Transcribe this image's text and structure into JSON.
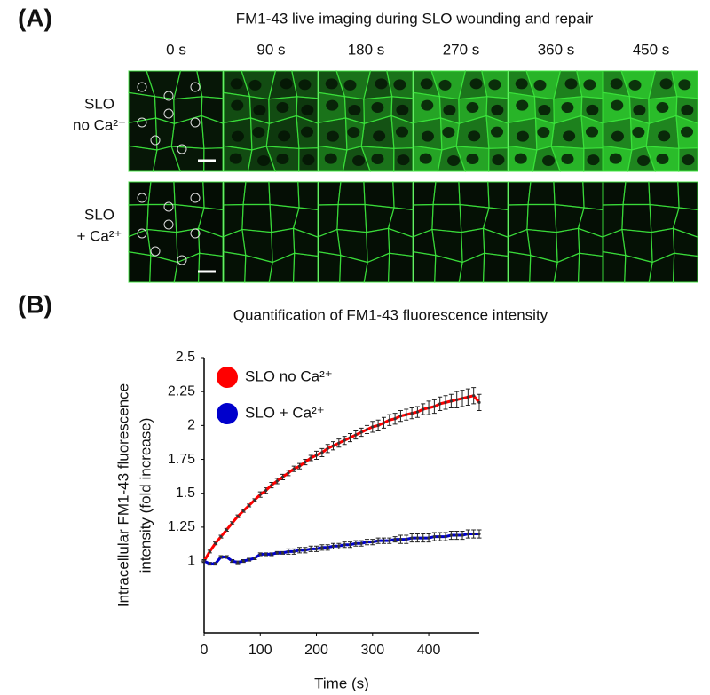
{
  "panel_a": {
    "label": "(A)",
    "title": "FM1-43 live imaging during SLO wounding and repair",
    "time_labels": [
      "0 s",
      "90 s",
      "180 s",
      "270 s",
      "360 s",
      "450 s"
    ],
    "row_labels": [
      [
        "SLO",
        "no Ca²⁺"
      ],
      [
        "SLO",
        "+ Ca²⁺"
      ]
    ]
  },
  "chart_data": {
    "type": "line",
    "panel_label": "(B)",
    "title": "Quantification of FM1-43 fluorescence intensity",
    "x_label": "Time (s)",
    "y_label": [
      "Intracellular FM1-43 fluorescence",
      "intensity (fold increase)"
    ],
    "x": [
      0,
      10,
      20,
      30,
      40,
      50,
      60,
      70,
      80,
      90,
      100,
      110,
      120,
      130,
      140,
      150,
      160,
      170,
      180,
      190,
      200,
      210,
      220,
      230,
      240,
      250,
      260,
      270,
      280,
      290,
      300,
      310,
      320,
      330,
      340,
      350,
      360,
      370,
      380,
      390,
      400,
      410,
      420,
      430,
      440,
      450,
      460,
      470,
      480,
      490
    ],
    "xlim": [
      0,
      490
    ],
    "xticks": [
      0,
      100,
      200,
      300,
      400
    ],
    "ylim": [
      0.47,
      2.5
    ],
    "yticks": [
      1,
      1.25,
      1.5,
      1.75,
      2,
      2.25,
      2.5
    ],
    "legend": "upper left",
    "series": [
      {
        "name": "SLO no Ca²⁺",
        "color": "#ff0000",
        "values": [
          1.0,
          1.07,
          1.13,
          1.18,
          1.23,
          1.28,
          1.33,
          1.37,
          1.41,
          1.45,
          1.49,
          1.52,
          1.56,
          1.59,
          1.62,
          1.65,
          1.68,
          1.7,
          1.73,
          1.76,
          1.78,
          1.8,
          1.83,
          1.85,
          1.87,
          1.89,
          1.91,
          1.93,
          1.95,
          1.97,
          1.99,
          2.0,
          2.02,
          2.04,
          2.05,
          2.07,
          2.08,
          2.09,
          2.1,
          2.12,
          2.13,
          2.14,
          2.16,
          2.17,
          2.18,
          2.19,
          2.2,
          2.21,
          2.22,
          2.17
        ],
        "errors": [
          0.01,
          0.01,
          0.01,
          0.01,
          0.01,
          0.01,
          0.01,
          0.01,
          0.01,
          0.01,
          0.02,
          0.02,
          0.02,
          0.02,
          0.02,
          0.02,
          0.02,
          0.02,
          0.02,
          0.02,
          0.03,
          0.03,
          0.03,
          0.03,
          0.03,
          0.03,
          0.03,
          0.03,
          0.03,
          0.03,
          0.04,
          0.04,
          0.04,
          0.04,
          0.04,
          0.04,
          0.04,
          0.04,
          0.04,
          0.04,
          0.05,
          0.05,
          0.05,
          0.05,
          0.05,
          0.06,
          0.06,
          0.06,
          0.06,
          0.06
        ]
      },
      {
        "name": "SLO + Ca²⁺",
        "color": "#0000cc",
        "values": [
          1.0,
          0.98,
          0.98,
          1.03,
          1.03,
          1.0,
          0.99,
          1.0,
          1.01,
          1.02,
          1.05,
          1.05,
          1.05,
          1.06,
          1.06,
          1.07,
          1.07,
          1.08,
          1.08,
          1.09,
          1.09,
          1.1,
          1.1,
          1.11,
          1.11,
          1.12,
          1.12,
          1.13,
          1.13,
          1.14,
          1.14,
          1.15,
          1.15,
          1.15,
          1.16,
          1.16,
          1.16,
          1.17,
          1.17,
          1.17,
          1.17,
          1.18,
          1.18,
          1.18,
          1.19,
          1.19,
          1.19,
          1.2,
          1.2,
          1.2
        ],
        "errors": [
          0.01,
          0.01,
          0.01,
          0.01,
          0.01,
          0.01,
          0.01,
          0.01,
          0.01,
          0.01,
          0.01,
          0.01,
          0.01,
          0.01,
          0.01,
          0.02,
          0.02,
          0.02,
          0.02,
          0.02,
          0.02,
          0.02,
          0.02,
          0.02,
          0.02,
          0.02,
          0.02,
          0.02,
          0.02,
          0.02,
          0.02,
          0.02,
          0.02,
          0.02,
          0.02,
          0.03,
          0.03,
          0.03,
          0.03,
          0.03,
          0.03,
          0.03,
          0.03,
          0.03,
          0.03,
          0.03,
          0.03,
          0.03,
          0.03,
          0.03
        ]
      }
    ]
  }
}
